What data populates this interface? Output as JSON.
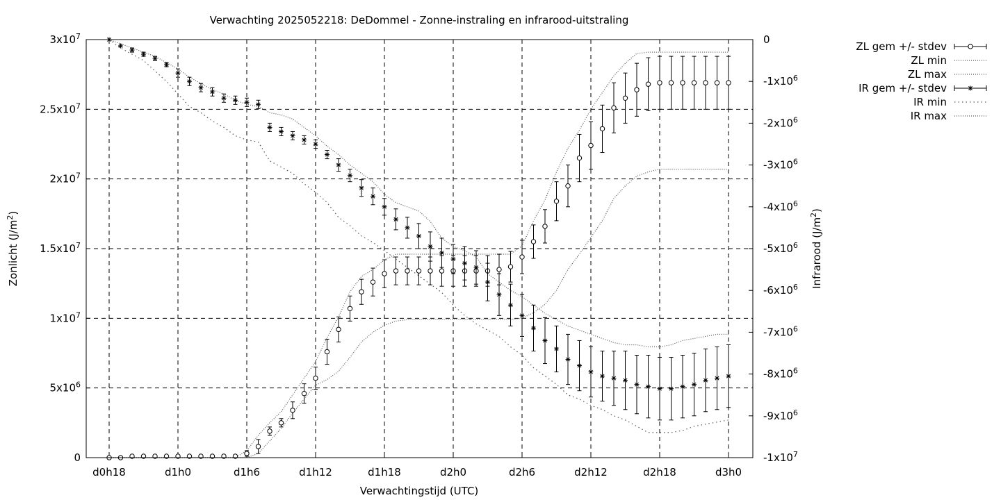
{
  "chart_data": {
    "type": "line",
    "title": "Verwachting 2025052218: DeDommel - Zonne-instraling en infrarood-uitstraling",
    "xlabel": "Verwachtingstijd (UTC)",
    "ylabel": "Zonlicht (J/m²)",
    "y2label": "Infrarood (J/m²)",
    "x_hours_from_d0h18": [
      0,
      1,
      2,
      3,
      4,
      5,
      6,
      7,
      8,
      9,
      10,
      11,
      12,
      13,
      14,
      15,
      16,
      17,
      18,
      19,
      20,
      21,
      22,
      23,
      24,
      25,
      26,
      27,
      28,
      29,
      30,
      31,
      32,
      33,
      34,
      35,
      36,
      37,
      38,
      39,
      40,
      41,
      42,
      43,
      44,
      45,
      46,
      47,
      48,
      49,
      50,
      51,
      52,
      53,
      54
    ],
    "x_ticks": [
      "d0h18",
      "d1h0",
      "d1h6",
      "d1h12",
      "d1h18",
      "d2h0",
      "d2h6",
      "d2h12",
      "d2h18",
      "d3h0"
    ],
    "ylim": [
      0,
      30000000
    ],
    "y2lim": [
      -10000000,
      0
    ],
    "y_ticks": [
      {
        "value": 0,
        "label": "0",
        "exp": ""
      },
      {
        "value": 5000000,
        "label": "5x10",
        "exp": "6"
      },
      {
        "value": 10000000,
        "label": "1x10",
        "exp": "7"
      },
      {
        "value": 15000000,
        "label": "1.5x10",
        "exp": "7"
      },
      {
        "value": 20000000,
        "label": "2x10",
        "exp": "7"
      },
      {
        "value": 25000000,
        "label": "2.5x10",
        "exp": "7"
      },
      {
        "value": 30000000,
        "label": "3x10",
        "exp": "7"
      }
    ],
    "y2_ticks": [
      {
        "value": 0,
        "label": "0",
        "exp": ""
      },
      {
        "value": -1000000,
        "label": "-1x10",
        "exp": "6"
      },
      {
        "value": -2000000,
        "label": "-2x10",
        "exp": "6"
      },
      {
        "value": -3000000,
        "label": "-3x10",
        "exp": "6"
      },
      {
        "value": -4000000,
        "label": "-4x10",
        "exp": "6"
      },
      {
        "value": -5000000,
        "label": "-5x10",
        "exp": "6"
      },
      {
        "value": -6000000,
        "label": "-6x10",
        "exp": "6"
      },
      {
        "value": -7000000,
        "label": "-7x10",
        "exp": "6"
      },
      {
        "value": -8000000,
        "label": "-8x10",
        "exp": "6"
      },
      {
        "value": -9000000,
        "label": "-9x10",
        "exp": "6"
      },
      {
        "value": -10000000,
        "label": "-1x10",
        "exp": "7"
      }
    ],
    "grid": true,
    "legend_position": "top-right outside",
    "series": [
      {
        "name": "ZL gem +/- stdev",
        "axis": "y",
        "style": "circle-errorbar",
        "values": [
          0,
          0,
          0.1,
          0.1,
          0.1,
          0.1,
          0.1,
          0.1,
          0.1,
          0.1,
          0.1,
          0.1,
          0.3,
          0.8,
          1.9,
          2.5,
          3.4,
          4.6,
          5.7,
          7.6,
          9.2,
          10.7,
          11.9,
          12.6,
          13.2,
          13.4,
          13.4,
          13.4,
          13.4,
          13.4,
          13.4,
          13.4,
          13.4,
          13.4,
          13.5,
          13.7,
          14.4,
          15.5,
          16.6,
          18.4,
          19.5,
          21.5,
          22.4,
          23.6,
          25.1,
          25.8,
          26.4,
          26.8,
          26.9,
          26.9,
          26.9,
          26.9,
          26.9,
          26.9,
          26.9
        ],
        "stdev": [
          0,
          0,
          0,
          0,
          0,
          0,
          0,
          0,
          0,
          0,
          0,
          0,
          0.2,
          0.5,
          0.3,
          0.3,
          0.6,
          0.7,
          0.8,
          0.9,
          0.9,
          0.9,
          0.9,
          1.0,
          1.0,
          1.0,
          1.0,
          1.0,
          1.0,
          1.1,
          1.1,
          1.1,
          1.1,
          1.1,
          1.1,
          1.1,
          1.2,
          1.2,
          1.2,
          1.4,
          1.5,
          1.7,
          1.7,
          1.7,
          1.8,
          1.8,
          1.9,
          1.9,
          1.9,
          1.9,
          1.9,
          1.9,
          1.9,
          1.9,
          1.9
        ]
      },
      {
        "name": "ZL min",
        "axis": "y",
        "style": "dotted",
        "values": [
          0,
          0,
          0,
          0,
          0,
          0,
          0,
          0,
          0,
          0,
          0,
          0,
          0,
          0.3,
          1.2,
          2.1,
          3.2,
          4.2,
          5.2,
          5.6,
          6.2,
          7.2,
          8.3,
          9.0,
          9.5,
          9.8,
          9.9,
          9.9,
          9.9,
          9.9,
          9.9,
          9.9,
          9.9,
          9.9,
          9.9,
          9.9,
          10.0,
          10.4,
          11.0,
          12.0,
          13.5,
          14.6,
          15.8,
          17.0,
          18.6,
          19.5,
          20.2,
          20.5,
          20.7,
          20.7,
          20.7,
          20.7,
          20.7,
          20.7,
          20.7
        ]
      },
      {
        "name": "ZL max",
        "axis": "y",
        "style": "dotted",
        "values": [
          0,
          0,
          0,
          0,
          0,
          0,
          0,
          0,
          0,
          0,
          0,
          0,
          0.5,
          1.6,
          2.5,
          3.3,
          4.5,
          5.7,
          6.9,
          8.6,
          10.1,
          11.9,
          13.0,
          13.5,
          14.2,
          14.6,
          14.6,
          14.6,
          14.6,
          14.6,
          14.6,
          14.6,
          14.6,
          14.6,
          14.6,
          14.6,
          15.2,
          17.0,
          18.5,
          20.5,
          22.2,
          23.5,
          25.0,
          26.2,
          27.4,
          28.3,
          29.0,
          29.1,
          29.1,
          29.1,
          29.1,
          29.1,
          29.1,
          29.1,
          29.1
        ]
      },
      {
        "name": "IR gem +/- stdev",
        "axis": "y2",
        "style": "star-errorbar",
        "values": [
          0,
          -0.15,
          -0.25,
          -0.35,
          -0.45,
          -0.6,
          -0.8,
          -1.0,
          -1.15,
          -1.25,
          -1.4,
          -1.45,
          -1.5,
          -1.55,
          -2.1,
          -2.2,
          -2.3,
          -2.4,
          -2.5,
          -2.75,
          -3.0,
          -3.25,
          -3.55,
          -3.75,
          -4.0,
          -4.3,
          -4.5,
          -4.7,
          -4.95,
          -5.1,
          -5.25,
          -5.35,
          -5.45,
          -5.8,
          -6.1,
          -6.35,
          -6.6,
          -6.9,
          -7.2,
          -7.4,
          -7.65,
          -7.8,
          -7.95,
          -8.05,
          -8.1,
          -8.15,
          -8.25,
          -8.3,
          -8.35,
          -8.35,
          -8.3,
          -8.25,
          -8.15,
          -8.1,
          -8.05
        ],
        "stdev": [
          0,
          0,
          0.05,
          0.05,
          0.05,
          0.05,
          0.1,
          0.1,
          0.1,
          0.1,
          0.1,
          0.1,
          0.1,
          0.1,
          0.1,
          0.1,
          0.1,
          0.1,
          0.1,
          0.1,
          0.15,
          0.15,
          0.2,
          0.2,
          0.2,
          0.25,
          0.25,
          0.3,
          0.35,
          0.35,
          0.35,
          0.4,
          0.4,
          0.45,
          0.5,
          0.5,
          0.5,
          0.55,
          0.55,
          0.55,
          0.6,
          0.6,
          0.6,
          0.6,
          0.65,
          0.7,
          0.7,
          0.75,
          0.75,
          0.75,
          0.75,
          0.75,
          0.75,
          0.75,
          0.75
        ]
      },
      {
        "name": "IR min",
        "axis": "y2",
        "style": "dotted-coarse",
        "values": [
          0,
          -0.2,
          -0.35,
          -0.5,
          -0.75,
          -1.0,
          -1.3,
          -1.6,
          -1.75,
          -1.95,
          -2.1,
          -2.3,
          -2.4,
          -2.45,
          -2.9,
          -3.05,
          -3.2,
          -3.45,
          -3.65,
          -3.9,
          -4.25,
          -4.45,
          -4.7,
          -4.85,
          -5.05,
          -5.25,
          -5.45,
          -5.65,
          -5.85,
          -6.05,
          -6.35,
          -6.6,
          -6.8,
          -6.95,
          -7.1,
          -7.35,
          -7.55,
          -7.85,
          -8.05,
          -8.25,
          -8.5,
          -8.6,
          -8.75,
          -8.85,
          -9.0,
          -9.1,
          -9.25,
          -9.4,
          -9.4,
          -9.4,
          -9.35,
          -9.25,
          -9.2,
          -9.15,
          -9.1
        ]
      },
      {
        "name": "IR max",
        "axis": "y2",
        "style": "dotted",
        "values": [
          0,
          -0.1,
          -0.2,
          -0.3,
          -0.4,
          -0.55,
          -0.7,
          -0.9,
          -1.05,
          -1.2,
          -1.3,
          -1.45,
          -1.55,
          -1.6,
          -1.75,
          -1.8,
          -1.9,
          -2.1,
          -2.3,
          -2.55,
          -2.75,
          -3.0,
          -3.2,
          -3.4,
          -3.7,
          -3.9,
          -4.0,
          -4.1,
          -4.35,
          -4.75,
          -4.95,
          -5.05,
          -5.2,
          -5.6,
          -5.8,
          -6.0,
          -6.15,
          -6.35,
          -6.55,
          -6.7,
          -6.85,
          -6.95,
          -7.05,
          -7.15,
          -7.25,
          -7.3,
          -7.3,
          -7.35,
          -7.35,
          -7.3,
          -7.2,
          -7.15,
          -7.1,
          -7.05,
          -7.05
        ]
      }
    ]
  }
}
